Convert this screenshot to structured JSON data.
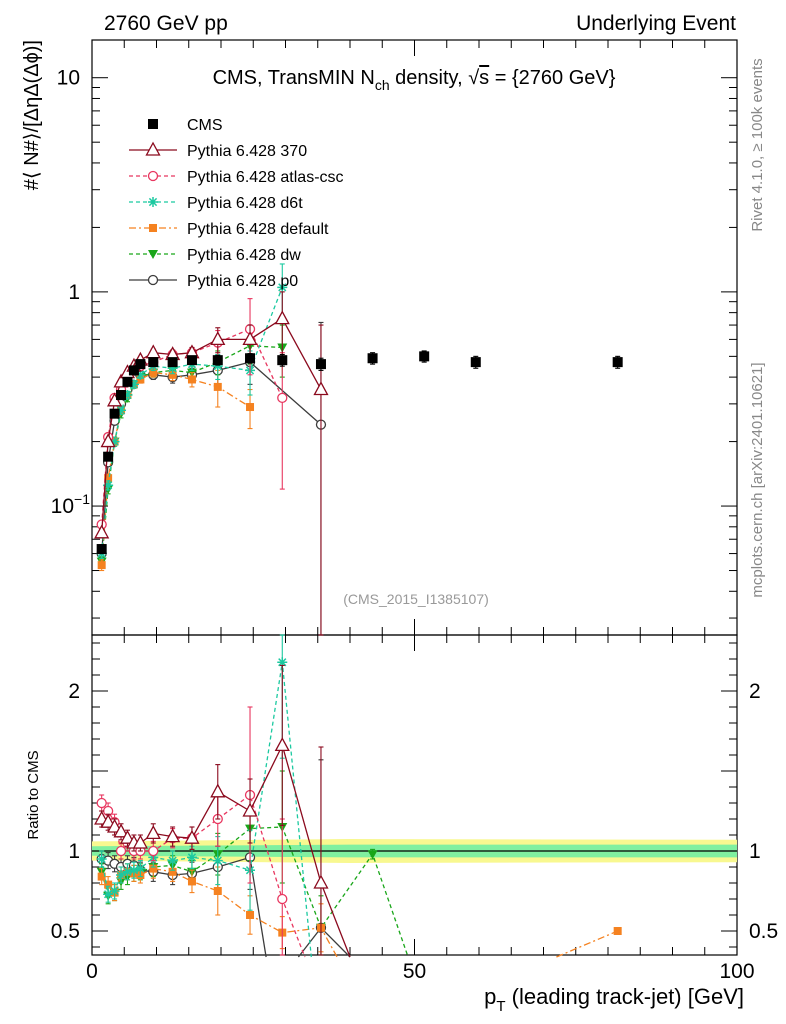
{
  "header": {
    "left": "2760 GeV pp",
    "right": "Underlying Event"
  },
  "side": {
    "rivet": "Rivet 4.1.0, ≥ 100k events",
    "mcplots": "mcplots.cern.ch [arXiv:2401.10621]"
  },
  "colors": {
    "cms": "#000000",
    "p370": "#8b0a1e",
    "atlas": "#e8365f",
    "d6t": "#1bc9a0",
    "default": "#f58220",
    "dw": "#19a619",
    "p0": "#3c3c3c",
    "band_inner": "#80f0a0",
    "band_outer": "#f8f890"
  },
  "chart_data": [
    {
      "type": "line",
      "panel": "main",
      "title": "CMS, TransMIN N_ch density, √s = {2760 GeV}",
      "title_parts": {
        "pre": "CMS, TransMIN N",
        "sub": "ch",
        "mid": " density, ",
        "root": "√",
        "over": "s",
        "post": " = {2760 GeV}"
      },
      "xlabel": "p_T (leading track-jet) [GeV]",
      "xlabel_parts": {
        "p": "p",
        "sub": "T",
        "rest": " (leading track-jet) [GeV]"
      },
      "ylabel": "#⟨ N#⟩/[ΔηΔ(Δϕ)]",
      "yscale": "log",
      "xlim": [
        0,
        100
      ],
      "ylim": [
        0.025,
        15
      ],
      "yticks": [
        {
          "v": 10,
          "label": "10"
        },
        {
          "v": 1,
          "label": "1"
        },
        {
          "v": 0.1,
          "label": "10",
          "sup": "−1"
        }
      ],
      "xticks": [
        0,
        50,
        100
      ],
      "annotation": "(CMS_2015_I1385107)",
      "series": [
        {
          "key": "cms",
          "name": "CMS",
          "x": [
            1.5,
            2.5,
            3.5,
            4.5,
            5.5,
            6.5,
            7.5,
            9.5,
            12.5,
            15.5,
            19.5,
            24.5,
            29.5,
            35.5,
            43.5,
            51.5,
            59.5,
            81.5
          ],
          "y": [
            0.063,
            0.17,
            0.27,
            0.33,
            0.38,
            0.43,
            0.46,
            0.47,
            0.47,
            0.48,
            0.48,
            0.49,
            0.48,
            0.46,
            0.49,
            0.5,
            0.47,
            0.47
          ],
          "err": [
            0.003,
            0.006,
            0.01,
            0.01,
            0.01,
            0.015,
            0.015,
            0.02,
            0.02,
            0.02,
            0.025,
            0.025,
            0.03,
            0.03,
            0.03,
            0.03,
            0.03,
            0.03
          ]
        },
        {
          "key": "p370",
          "name": "Pythia 6.428 370",
          "x": [
            1.5,
            2.5,
            3.5,
            4.5,
            5.5,
            6.5,
            7.5,
            9.5,
            12.5,
            15.5,
            19.5,
            24.5,
            29.5,
            35.5
          ],
          "y": [
            0.075,
            0.2,
            0.31,
            0.38,
            0.42,
            0.45,
            0.48,
            0.52,
            0.51,
            0.52,
            0.6,
            0.6,
            0.75,
            0.35
          ],
          "err": [
            0.003,
            0.006,
            0.01,
            0.012,
            0.013,
            0.015,
            0.015,
            0.02,
            0.025,
            0.03,
            0.08,
            0.1,
            0.25,
            0.35
          ]
        },
        {
          "key": "atlas",
          "name": "Pythia 6.428 atlas-csc",
          "x": [
            1.5,
            2.5,
            3.5,
            4.5,
            5.5,
            6.5,
            7.5,
            9.5,
            12.5,
            15.5,
            19.5,
            24.5,
            29.5
          ],
          "y": [
            0.082,
            0.21,
            0.32,
            0.35,
            0.39,
            0.43,
            0.45,
            0.47,
            0.51,
            0.52,
            0.58,
            0.67,
            0.32
          ],
          "err": [
            0.003,
            0.006,
            0.01,
            0.012,
            0.013,
            0.015,
            0.015,
            0.02,
            0.025,
            0.03,
            0.08,
            0.26,
            0.2
          ]
        },
        {
          "key": "d6t",
          "name": "Pythia 6.428 d6t",
          "x": [
            1.5,
            2.5,
            3.5,
            4.5,
            5.5,
            6.5,
            7.5,
            9.5,
            12.5,
            15.5,
            19.5,
            24.5,
            29.5
          ],
          "y": [
            0.06,
            0.125,
            0.2,
            0.28,
            0.33,
            0.37,
            0.41,
            0.45,
            0.44,
            0.46,
            0.45,
            0.43,
            1.05
          ],
          "err": [
            0.003,
            0.006,
            0.01,
            0.012,
            0.013,
            0.015,
            0.015,
            0.02,
            0.025,
            0.03,
            0.06,
            0.1,
            0.3
          ]
        },
        {
          "key": "default",
          "name": "Pythia 6.428 default",
          "x": [
            1.5,
            2.5,
            3.5,
            4.5,
            5.5,
            6.5,
            7.5,
            9.5,
            12.5,
            15.5,
            19.5,
            24.5
          ],
          "y": [
            0.053,
            0.135,
            0.2,
            0.28,
            0.33,
            0.37,
            0.39,
            0.42,
            0.41,
            0.39,
            0.36,
            0.29
          ],
          "err": [
            0.003,
            0.006,
            0.01,
            0.012,
            0.013,
            0.015,
            0.015,
            0.02,
            0.025,
            0.03,
            0.07,
            0.06
          ]
        },
        {
          "key": "dw",
          "name": "Pythia 6.428 dw",
          "x": [
            1.5,
            2.5,
            3.5,
            4.5,
            5.5,
            6.5,
            7.5,
            9.5,
            12.5,
            15.5,
            19.5,
            24.5,
            29.5
          ],
          "y": [
            0.055,
            0.12,
            0.2,
            0.27,
            0.32,
            0.37,
            0.4,
            0.42,
            0.43,
            0.42,
            0.47,
            0.56,
            0.55
          ],
          "err": [
            0.003,
            0.006,
            0.01,
            0.012,
            0.013,
            0.015,
            0.015,
            0.02,
            0.025,
            0.03,
            0.06,
            0.1,
            0.15
          ]
        },
        {
          "key": "p0",
          "name": "Pythia 6.428 p0",
          "x": [
            1.5,
            2.5,
            3.5,
            4.5,
            5.5,
            6.5,
            7.5,
            9.5,
            12.5,
            15.5,
            19.5,
            24.5,
            35.5
          ],
          "y": [
            0.06,
            0.16,
            0.25,
            0.3,
            0.35,
            0.39,
            0.41,
            0.41,
            0.4,
            0.41,
            0.43,
            0.47,
            0.24
          ],
          "err": [
            0.003,
            0.006,
            0.01,
            0.012,
            0.013,
            0.015,
            0.015,
            0.02,
            0.025,
            0.03,
            0.06,
            0.1,
            0.48
          ]
        }
      ]
    },
    {
      "type": "line",
      "panel": "ratio",
      "ylabel": "Ratio to CMS",
      "yscale": "linear",
      "xlim": [
        0,
        100
      ],
      "ylim": [
        0.35,
        2.35
      ],
      "yticks": [
        {
          "v": 0.5,
          "label": "0.5"
        },
        {
          "v": 1,
          "label": "1"
        },
        {
          "v": 2,
          "label": "2"
        }
      ],
      "xticks": [
        0,
        50,
        100
      ],
      "xticklabels": [
        "0",
        "50",
        "100"
      ],
      "band_inner": {
        "x": [
          0,
          40,
          100
        ],
        "lo": [
          0.97,
          0.96,
          0.96
        ],
        "hi": [
          1.03,
          1.04,
          1.04
        ]
      },
      "band_outer": {
        "x": [
          0,
          40,
          100
        ],
        "lo": [
          0.94,
          0.925,
          0.93
        ],
        "hi": [
          1.06,
          1.075,
          1.07
        ]
      },
      "series": [
        {
          "key": "p370",
          "x": [
            1.5,
            2.5,
            3.5,
            4.5,
            5.5,
            6.5,
            7.5,
            9.5,
            12.5,
            15.5,
            19.5,
            24.5,
            29.5,
            35.5,
            40.0
          ],
          "y": [
            1.2,
            1.18,
            1.15,
            1.12,
            1.08,
            1.05,
            1.05,
            1.11,
            1.09,
            1.08,
            1.37,
            1.25,
            1.66,
            0.8,
            0.2
          ],
          "err": [
            0.05,
            0.05,
            0.05,
            0.05,
            0.05,
            0.05,
            0.05,
            0.06,
            0.06,
            0.07,
            0.17,
            0.2,
            0.5,
            0.85,
            0
          ]
        },
        {
          "key": "atlas",
          "x": [
            1.5,
            2.5,
            3.5,
            4.5,
            5.5,
            6.5,
            7.5,
            9.5,
            12.5,
            15.5,
            19.5,
            24.5,
            29.5,
            33.0
          ],
          "y": [
            1.3,
            1.25,
            1.18,
            1.0,
            1.05,
            1.0,
            1.0,
            1.0,
            1.08,
            1.08,
            1.2,
            1.35,
            0.7,
            0.2
          ],
          "err": [
            0.05,
            0.05,
            0.05,
            0.05,
            0.05,
            0.05,
            0.05,
            0.06,
            0.06,
            0.07,
            0.17,
            0.55,
            0.5,
            0
          ]
        },
        {
          "key": "d6t",
          "x": [
            1.5,
            2.5,
            3.5,
            4.5,
            5.5,
            6.5,
            7.5,
            9.5,
            12.5,
            15.5,
            19.5,
            24.5,
            29.5,
            34.0
          ],
          "y": [
            0.95,
            0.73,
            0.75,
            0.85,
            0.87,
            0.88,
            0.89,
            0.96,
            0.94,
            0.96,
            0.94,
            0.88,
            2.18,
            0.2
          ],
          "err": [
            0.05,
            0.05,
            0.05,
            0.05,
            0.05,
            0.05,
            0.05,
            0.06,
            0.06,
            0.07,
            0.15,
            0.25,
            0.6,
            0
          ]
        },
        {
          "key": "default",
          "x": [
            1.5,
            2.5,
            3.5,
            4.5,
            5.5,
            6.5,
            7.5,
            9.5,
            12.5,
            15.5,
            19.5,
            24.5,
            29.5,
            35.5,
            38.0,
            null,
            72.0,
            81.5
          ],
          "y": [
            0.84,
            0.79,
            0.74,
            0.85,
            0.87,
            0.86,
            0.85,
            0.89,
            0.87,
            0.81,
            0.75,
            0.6,
            0.49,
            0.52,
            0.3,
            null,
            0.3,
            0.5
          ],
          "err": [
            0.05,
            0.05,
            0.05,
            0.05,
            0.05,
            0.05,
            0.05,
            0.06,
            0.06,
            0.07,
            0.15,
            0.12,
            0.1,
            0.15,
            0,
            null,
            0,
            0
          ]
        },
        {
          "key": "dw",
          "x": [
            1.5,
            2.5,
            3.5,
            4.5,
            5.5,
            6.5,
            7.5,
            9.5,
            12.5,
            15.5,
            19.5,
            24.5,
            29.5,
            35.5,
            43.5,
            49.0
          ],
          "y": [
            0.87,
            0.72,
            0.74,
            0.81,
            0.84,
            0.86,
            0.87,
            0.9,
            0.91,
            0.87,
            0.98,
            1.14,
            1.15,
            0.52,
            0.98,
            0.2
          ],
          "err": [
            0.05,
            0.05,
            0.05,
            0.05,
            0.05,
            0.05,
            0.05,
            0.06,
            0.06,
            0.07,
            0.13,
            0.2,
            0.35,
            0.2,
            0.03,
            0
          ]
        },
        {
          "key": "p0",
          "x": [
            1.5,
            2.5,
            3.5,
            4.5,
            5.5,
            6.5,
            7.5,
            9.5,
            12.5,
            15.5,
            19.5,
            24.5,
            27.0,
            null,
            32.0,
            35.5,
            40.0
          ],
          "y": [
            0.95,
            0.94,
            0.92,
            0.9,
            0.92,
            0.91,
            0.88,
            0.87,
            0.85,
            0.86,
            0.9,
            0.96,
            0.3,
            null,
            0.3,
            0.52,
            0.3
          ],
          "err": [
            0.05,
            0.05,
            0.05,
            0.05,
            0.05,
            0.05,
            0.05,
            0.06,
            0.06,
            0.07,
            0.13,
            0.2,
            0,
            null,
            0,
            1.05,
            0
          ]
        }
      ]
    }
  ]
}
